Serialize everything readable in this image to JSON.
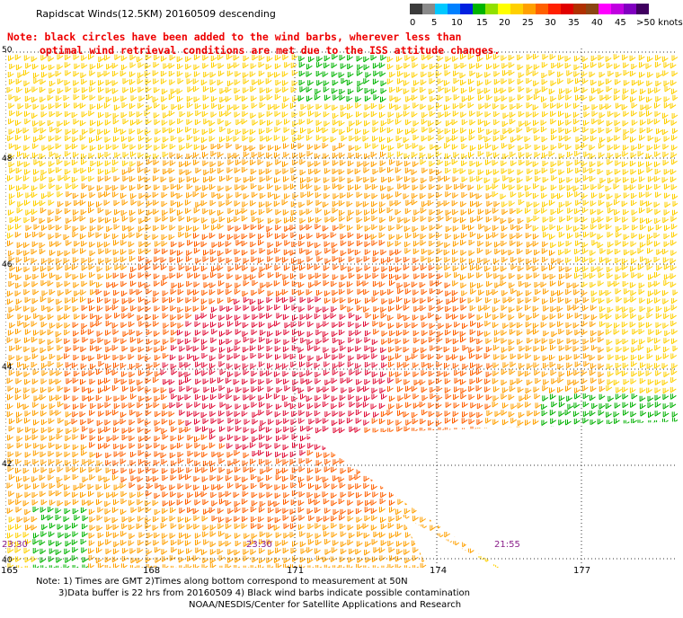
{
  "title": "Rapidscat Winds(12.5KM) 20160509 descending",
  "note_line1": "Note: black circles have been added to the wind barbs, wherever less than",
  "note_line2": "optimal wind retrieval conditions are met due to the ISS attitude changes.",
  "scale": {
    "labels": [
      "0",
      "5",
      "10",
      "15",
      "20",
      "25",
      "30",
      "35",
      "40",
      "45",
      ">50 knots"
    ],
    "colors": [
      "#3b3b3b",
      "#8a8a8a",
      "#00c8ff",
      "#0050ff",
      "#00b400",
      "#ffff00",
      "#ffa000",
      "#ff3000",
      "#c00000",
      "#a0522d",
      "#ff00ff",
      "#5a0080"
    ]
  },
  "lat_labels": [
    "50",
    "48",
    "46",
    "44",
    "42",
    "40"
  ],
  "lon_labels": [
    "165",
    "168",
    "171",
    "174",
    "177"
  ],
  "times": [
    "23:30",
    "23:30",
    "21:55"
  ],
  "footer_line1": "Note: 1) Times are GMT 2)Times along bottom correspond to measurement at 50N",
  "footer_line2": "3)Data buffer is 22 hrs from 20160509 4) Black wind barbs indicate possible contamination",
  "footer_line3": "NOAA/NESDIS/Center for Satellite Applications and Research"
}
